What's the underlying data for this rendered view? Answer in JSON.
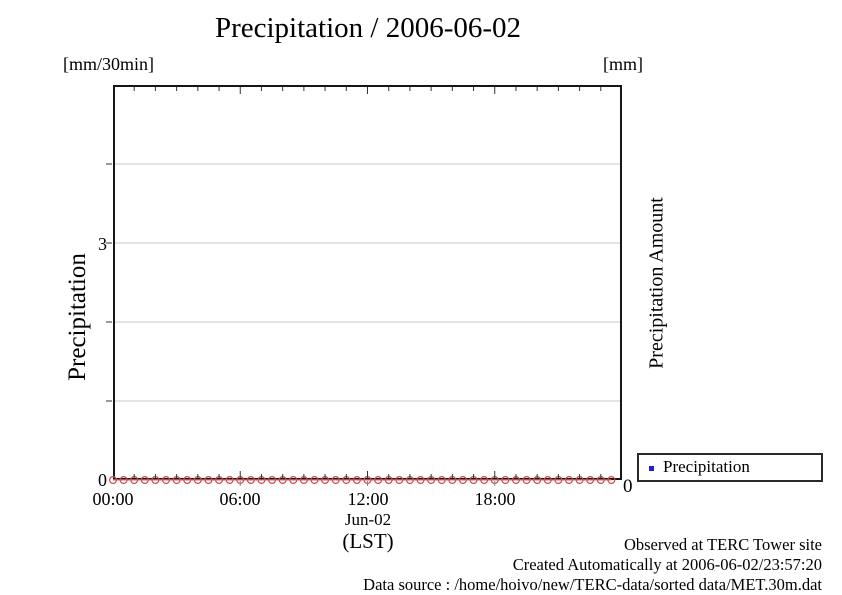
{
  "title": "Precipitation / 2006-06-02",
  "left_axis": {
    "unit": "[mm/30min]",
    "label": "Precipitation",
    "ticks": [
      "3",
      "0"
    ]
  },
  "right_axis": {
    "unit": "[mm]",
    "label": "Precipitation Amount",
    "ticks": [
      "0"
    ]
  },
  "x_axis": {
    "tick_labels": [
      "00:00",
      "06:00",
      "12:00",
      "18:00"
    ],
    "date_label": "Jun-02",
    "timezone_label": "(LST)"
  },
  "legend": {
    "items": [
      {
        "label": "Precipitation",
        "marker": "blue-square",
        "marker_color": "#2222cc"
      }
    ]
  },
  "annotations": [
    "Observed at TERC Tower site",
    "Created Automatically at 2006-06-02/23:57:20",
    "Data source : /home/hoivo/new/TERC-data/sorted  data/MET.30m.dat"
  ],
  "colors": {
    "series_line": "#e38080",
    "series_marker": "#cf4a4a",
    "grid": "#c9c9c9",
    "border": "#161616",
    "tick": "#333333",
    "minor_outside_tick": "#888888",
    "legend_marker": "#2222cc"
  },
  "chart_data": {
    "type": "line",
    "title": "Precipitation / 2006-06-02",
    "xlabel": "Jun-02 (LST)",
    "ylabel_left": "Precipitation [mm/30min]",
    "ylabel_right": "Precipitation Amount [mm]",
    "ylim_left": [
      0,
      5
    ],
    "yticks_labeled_left": [
      0,
      3
    ],
    "gridline_values_left": [
      1,
      2,
      3,
      4
    ],
    "yticks_labeled_right": [
      0
    ],
    "xlim": [
      "00:00",
      "24:00"
    ],
    "xticks": [
      "00:00",
      "06:00",
      "12:00",
      "18:00"
    ],
    "grid": true,
    "legend_position": "outside-bottom-right",
    "series": [
      {
        "name": "Precipitation",
        "marker": "open-circle",
        "color": "red",
        "x": [
          "00:00",
          "00:30",
          "01:00",
          "01:30",
          "02:00",
          "02:30",
          "03:00",
          "03:30",
          "04:00",
          "04:30",
          "05:00",
          "05:30",
          "06:00",
          "06:30",
          "07:00",
          "07:30",
          "08:00",
          "08:30",
          "09:00",
          "09:30",
          "10:00",
          "10:30",
          "11:00",
          "11:30",
          "12:00",
          "12:30",
          "13:00",
          "13:30",
          "14:00",
          "14:30",
          "15:00",
          "15:30",
          "16:00",
          "16:30",
          "17:00",
          "17:30",
          "18:00",
          "18:30",
          "19:00",
          "19:30",
          "20:00",
          "20:30",
          "21:00",
          "21:30",
          "22:00",
          "22:30",
          "23:00",
          "23:30"
        ],
        "values": [
          0,
          0,
          0,
          0,
          0,
          0,
          0,
          0,
          0,
          0,
          0,
          0,
          0,
          0,
          0,
          0,
          0,
          0,
          0,
          0,
          0,
          0,
          0,
          0,
          0,
          0,
          0,
          0,
          0,
          0,
          0,
          0,
          0,
          0,
          0,
          0,
          0,
          0,
          0,
          0,
          0,
          0,
          0,
          0,
          0,
          0,
          0,
          0
        ]
      }
    ]
  }
}
